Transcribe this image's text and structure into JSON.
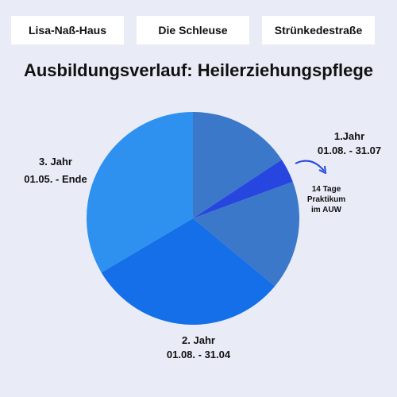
{
  "tabs": [
    {
      "label": "Lisa-Naß-Haus"
    },
    {
      "label": "Die Schleuse"
    },
    {
      "label": "Strünkedestraße"
    }
  ],
  "chart_data": {
    "type": "pie",
    "title": "Ausbildungsverlauf: Heilerziehungspflege",
    "slices": [
      {
        "label": "1.Jahr",
        "period": "01.08. - 31.07",
        "value": 15.7,
        "color": "#3b78c9"
      },
      {
        "label": "14 Tage Praktikum im AUW",
        "period": "",
        "value": 3.7,
        "color": "#2746e0"
      },
      {
        "label": "",
        "period": "",
        "value": 16.6,
        "color": "#3b78c9"
      },
      {
        "label": "2. Jahr",
        "period": "01.08. - 31.04",
        "value": 30.5,
        "color": "#146fe8"
      },
      {
        "label": "3. Jahr",
        "period": "01.05. - Ende",
        "value": 33.5,
        "color": "#2e91f0"
      }
    ],
    "annotation": {
      "line1": "14 Tage",
      "line2": "Praktikum",
      "line3": "im AUW",
      "arrow_color": "#2746e0"
    }
  }
}
